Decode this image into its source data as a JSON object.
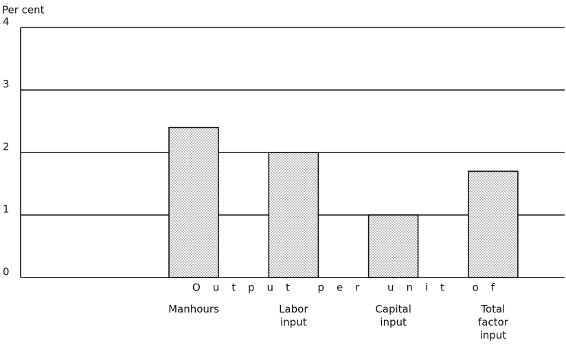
{
  "chart_data": {
    "type": "bar",
    "y_label": "Per cent",
    "x_label": "Output per unit of",
    "categories": [
      "Manhours",
      "Labor input",
      "Capital input",
      "Total factor input"
    ],
    "values": [
      2.4,
      2.0,
      1.0,
      1.7
    ],
    "color": "#ffffff",
    "ylim": [
      0,
      4
    ],
    "yticks": [
      0,
      1,
      2,
      3,
      4
    ],
    "grid": true
  }
}
